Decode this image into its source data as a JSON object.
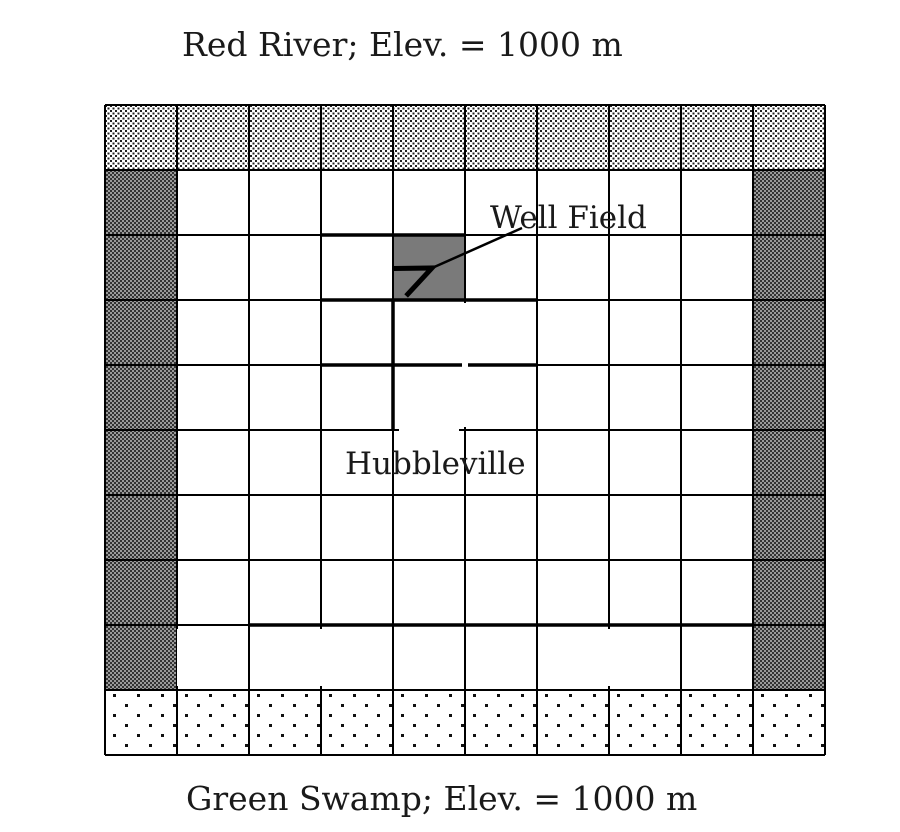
{
  "top_boundary": {
    "name": "Red River",
    "elevation": "Elev. = 1000 m",
    "label": "Red River;   Elev. = 1000 m"
  },
  "bottom_boundary": {
    "name": "Green Swamp",
    "elevation": "Elev. = 1000 m",
    "label": "Green Swamp;   Elev. = 1000 m"
  },
  "grid": {
    "rows": 10,
    "cols": 10
  },
  "annotations": {
    "well_field": "Well Field",
    "town": "Hubbleville"
  },
  "colors": {
    "well_cell": "#7a7a7a",
    "grid_line": "#000000",
    "river_pattern": "#222222",
    "side_pattern": "#333333",
    "swamp_pattern": "#111111"
  }
}
